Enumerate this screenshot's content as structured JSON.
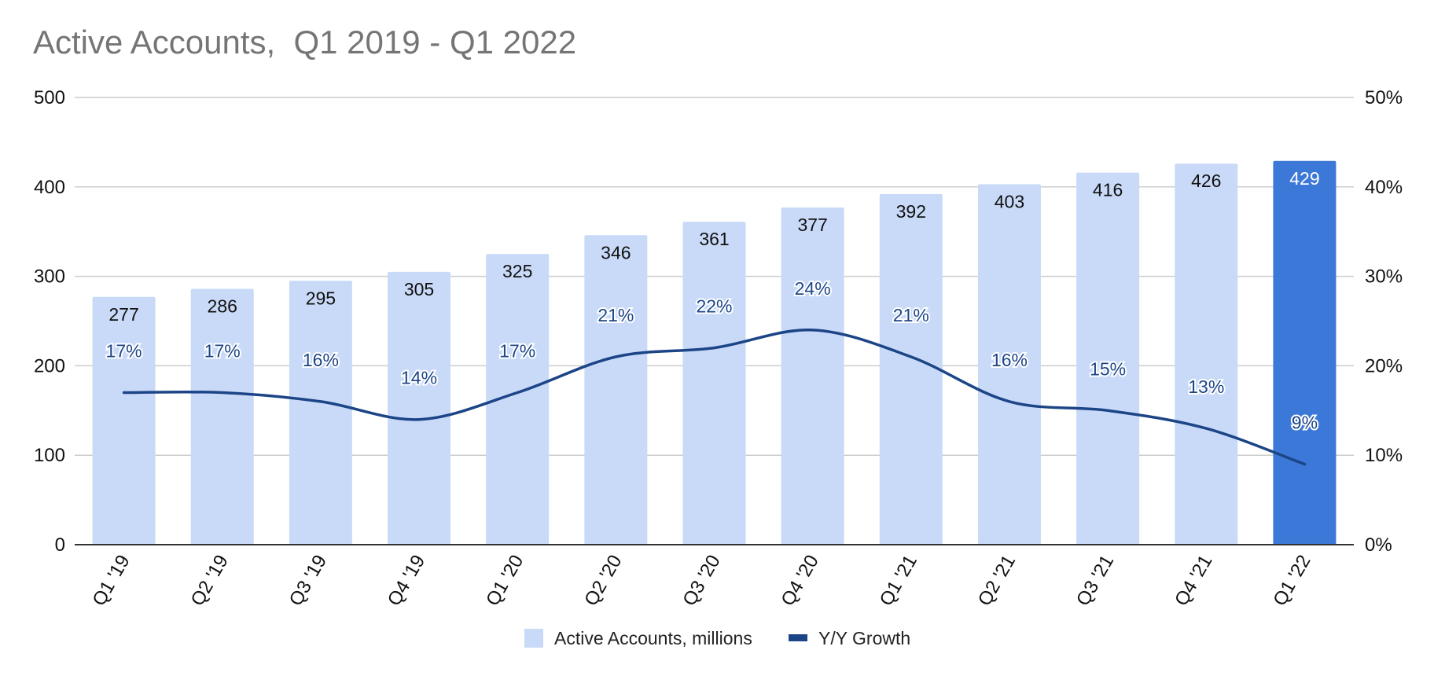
{
  "chart_data": {
    "type": "bar",
    "title": "Active Accounts,  Q1 2019 - Q1 2022",
    "categories": [
      "Q1 '19",
      "Q2 '19",
      "Q3 '19",
      "Q4 '19",
      "Q1 '20",
      "Q2 '20",
      "Q3 '20",
      "Q4 '20",
      "Q1 '21",
      "Q2 '21",
      "Q3 '21",
      "Q4 '21",
      "Q1 '22"
    ],
    "series": [
      {
        "name": "Active Accounts, millions",
        "type": "bar",
        "axis": "left",
        "values": [
          277,
          286,
          295,
          305,
          325,
          346,
          361,
          377,
          392,
          403,
          416,
          426,
          429
        ],
        "labels": [
          "277",
          "286",
          "295",
          "305",
          "325",
          "346",
          "361",
          "377",
          "392",
          "403",
          "416",
          "426",
          "429"
        ],
        "color": "#c9daf8",
        "highlight_color": "#3c78d8",
        "highlight_index": 12
      },
      {
        "name": "Y/Y Growth",
        "type": "line",
        "axis": "right",
        "values": [
          17,
          17,
          16,
          14,
          17,
          21,
          22,
          24,
          21,
          16,
          15,
          13,
          9
        ],
        "labels": [
          "17%",
          "17%",
          "16%",
          "14%",
          "17%",
          "21%",
          "22%",
          "24%",
          "21%",
          "16%",
          "15%",
          "13%",
          "9%"
        ],
        "color": "#1c4587"
      }
    ],
    "y_left": {
      "ylim": [
        0,
        500
      ],
      "ticks": [
        "0",
        "100",
        "200",
        "300",
        "400",
        "500"
      ]
    },
    "y_right": {
      "ylim": [
        0,
        50
      ],
      "ticks": [
        "0%",
        "10%",
        "20%",
        "30%",
        "40%",
        "50%"
      ]
    },
    "grid": true,
    "legend": "bottom"
  }
}
